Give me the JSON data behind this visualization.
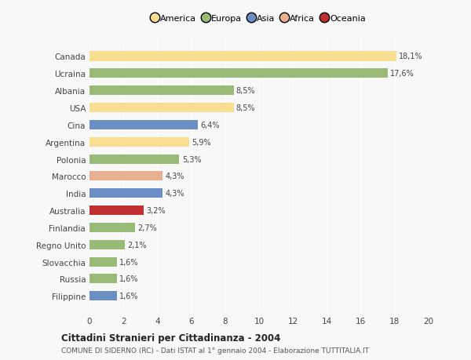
{
  "categories": [
    "Filippine",
    "Russia",
    "Slovacchia",
    "Regno Unito",
    "Finlandia",
    "Australia",
    "India",
    "Marocco",
    "Polonia",
    "Argentina",
    "Cina",
    "USA",
    "Albania",
    "Ucraina",
    "Canada"
  ],
  "values": [
    1.6,
    1.6,
    1.6,
    2.1,
    2.7,
    3.2,
    4.3,
    4.3,
    5.3,
    5.9,
    6.4,
    8.5,
    8.5,
    17.6,
    18.1
  ],
  "labels": [
    "1,6%",
    "1,6%",
    "1,6%",
    "2,1%",
    "2,7%",
    "3,2%",
    "4,3%",
    "4,3%",
    "5,3%",
    "5,9%",
    "6,4%",
    "8,5%",
    "8,5%",
    "17,6%",
    "18,1%"
  ],
  "colors": [
    "#6b8ec4",
    "#99bb77",
    "#99bb77",
    "#99bb77",
    "#99bb77",
    "#c03030",
    "#6b8ec4",
    "#e8b090",
    "#99bb77",
    "#f9dd90",
    "#6b8ec4",
    "#f9dd90",
    "#99bb77",
    "#99bb77",
    "#f9dd90"
  ],
  "legend": [
    {
      "label": "America",
      "color": "#f9dd90"
    },
    {
      "label": "Europa",
      "color": "#99bb77"
    },
    {
      "label": "Asia",
      "color": "#6b8ec4"
    },
    {
      "label": "Africa",
      "color": "#e8b090"
    },
    {
      "label": "Oceania",
      "color": "#c03030"
    }
  ],
  "xlim": [
    0,
    20
  ],
  "xticks": [
    0,
    2,
    4,
    6,
    8,
    10,
    12,
    14,
    16,
    18,
    20
  ],
  "title": "Cittadini Stranieri per Cittadinanza - 2004",
  "subtitle": "COMUNE DI SIDERNO (RC) - Dati ISTAT al 1° gennaio 2004 - Elaborazione TUTTITALIA.IT",
  "bg_color": "#f8f8f8",
  "bar_height": 0.55
}
